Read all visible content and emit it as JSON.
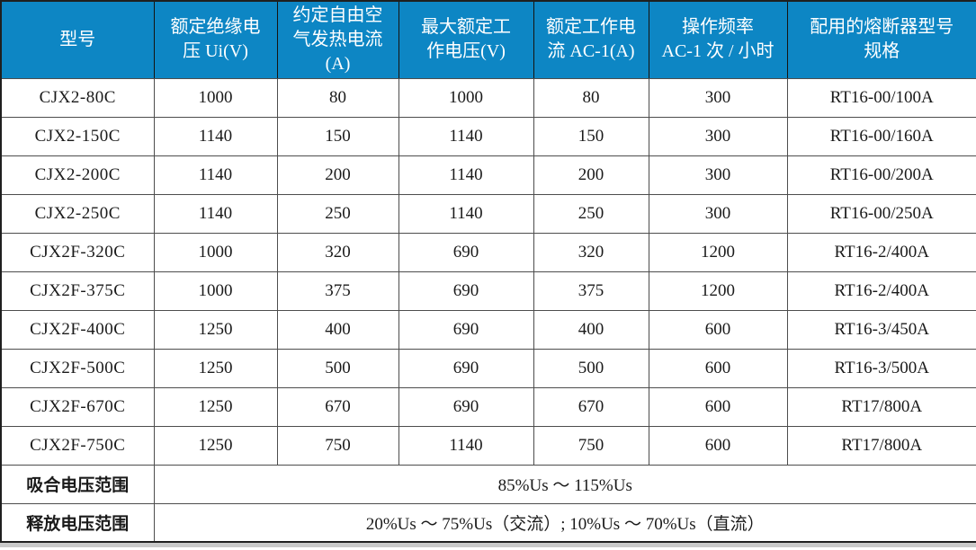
{
  "accent_color": "#0d86c4",
  "border_color": "#4d4d4d",
  "table": {
    "headers": [
      "型号",
      "额定绝缘电\n压 Ui(V)",
      "约定自由空\n气发热电流\n(A)",
      "最大额定工\n作电压(V)",
      "额定工作电\n流 AC-1(A)",
      "操作频率\nAC-1 次 / 小时",
      "配用的熔断器型号\n规格"
    ],
    "rows": [
      [
        "CJX2-80C",
        "1000",
        "80",
        "1000",
        "80",
        "300",
        "RT16-00/100A"
      ],
      [
        "CJX2-150C",
        "1140",
        "150",
        "1140",
        "150",
        "300",
        "RT16-00/160A"
      ],
      [
        "CJX2-200C",
        "1140",
        "200",
        "1140",
        "200",
        "300",
        "RT16-00/200A"
      ],
      [
        "CJX2-250C",
        "1140",
        "250",
        "1140",
        "250",
        "300",
        "RT16-00/250A"
      ],
      [
        "CJX2F-320C",
        "1000",
        "320",
        "690",
        "320",
        "1200",
        "RT16-2/400A"
      ],
      [
        "CJX2F-375C",
        "1000",
        "375",
        "690",
        "375",
        "1200",
        "RT16-2/400A"
      ],
      [
        "CJX2F-400C",
        "1250",
        "400",
        "690",
        "400",
        "600",
        "RT16-3/450A"
      ],
      [
        "CJX2F-500C",
        "1250",
        "500",
        "690",
        "500",
        "600",
        "RT16-3/500A"
      ],
      [
        "CJX2F-670C",
        "1250",
        "670",
        "690",
        "670",
        "600",
        "RT17/800A"
      ],
      [
        "CJX2F-750C",
        "1250",
        "750",
        "1140",
        "750",
        "600",
        "RT17/800A"
      ]
    ],
    "footer_rows": [
      {
        "label": "吸合电压范围",
        "value": "85%Us ～ 115%Us"
      },
      {
        "label": "释放电压范围",
        "value": "20%Us ～ 75%Us（交流）; 10%Us ～ 70%Us（直流）"
      }
    ]
  }
}
